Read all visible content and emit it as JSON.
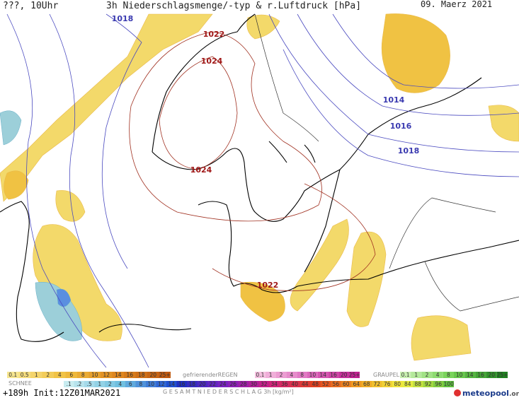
{
  "header": {
    "left": "???, 10Uhr",
    "title": "3h Niederschlagsmenge/-typ & r.Luftdruck [hPa]",
    "date": "09. Maerz 2021"
  },
  "isobars": [
    "1018",
    "1022",
    "1024",
    "1024",
    "1014",
    "1016",
    "1018",
    "1022"
  ],
  "legend": {
    "rain": {
      "labels": [
        "0.1",
        "0.5",
        "1",
        "2",
        "4",
        "6",
        "8",
        "10",
        "12",
        "14",
        "16",
        "18",
        "20",
        "25+"
      ]
    },
    "freezing_rain": {
      "name": "gefrierenderREGEN",
      "labels": [
        "0.1",
        "1",
        "2",
        "4",
        "8",
        "10",
        "14",
        "16",
        "20",
        "25+"
      ]
    },
    "graupel": {
      "name": "GRAUPEL",
      "labels": [
        "0.1",
        "1",
        "2",
        "4",
        "8",
        "10",
        "14",
        "16",
        "20",
        "25+"
      ]
    },
    "snow": {
      "name": "SCHNEE",
      "labels": [
        ".1",
        ".2",
        ".5",
        "1",
        "2",
        "4",
        "6",
        "8",
        "10",
        "12",
        "14"
      ]
    },
    "total": {
      "labels": [
        "16",
        "18",
        "20",
        "22",
        "24",
        "26",
        "28",
        "30",
        "32",
        "34",
        "36",
        "40",
        "44",
        "48",
        "52",
        "56",
        "60",
        "64",
        "68",
        "72",
        "76",
        "80",
        "84",
        "88",
        "92",
        "96",
        "100"
      ],
      "caption": "G E S A M T N I E D E R S C H L A G   3h   [kg/m²]"
    }
  },
  "footer": {
    "run": "+189h  Init:12Z01MAR2021",
    "logo": "meteopool",
    "logo_suffix": ".org"
  }
}
